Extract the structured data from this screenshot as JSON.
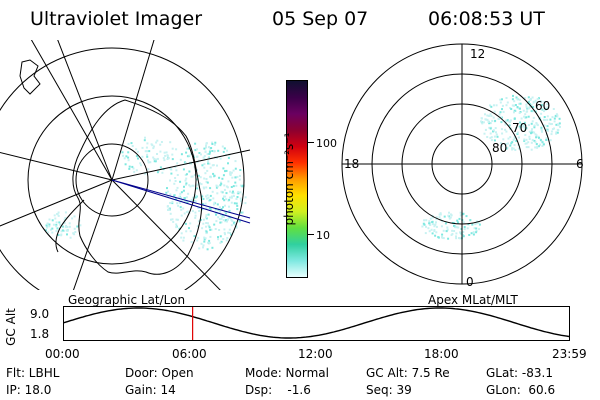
{
  "header": {
    "instrument": "Ultraviolet Imager",
    "date": "05 Sep 07",
    "time": "06:08:53 UT"
  },
  "geo_panel": {
    "caption": "Geographic Lat/Lon"
  },
  "colorbar": {
    "unit_label": "photon cm⁻²s⁻¹",
    "ticks": [
      "100",
      "10"
    ],
    "colors": [
      "#e8ffff",
      "#7ee8e0",
      "#30d0a0",
      "#60e040",
      "#d0f020",
      "#ffe000",
      "#ff9a00",
      "#ff3000",
      "#d00010",
      "#8c0030",
      "#6a0060",
      "#3a0048",
      "#101030"
    ]
  },
  "apex_panel": {
    "caption": "Apex MLat/MLT",
    "mlt_labels": [
      "12",
      "18",
      "6",
      "0"
    ],
    "mlat_labels": [
      "60",
      "70",
      "80"
    ]
  },
  "altitude_plot": {
    "ylabel": "GC Alt",
    "y_ticks": [
      "9.0",
      "1.8"
    ],
    "x_ticks": [
      "00:00",
      "06:00",
      "12:00",
      "18:00",
      "23:59"
    ],
    "current_time_hours": 6.148
  },
  "info": {
    "flt": "Flt: LBHL",
    "ip": "IP: 18.0",
    "door": "Door: Open",
    "gain": "Gain: 14",
    "mode": "Mode: Normal",
    "dsp": "Dsp:    -1.6",
    "gc_alt": "GC Alt: 7.5 Re",
    "seq": "Seq: 39",
    "glat": "GLat: -83.1",
    "glon": "GLon:  60.6"
  }
}
